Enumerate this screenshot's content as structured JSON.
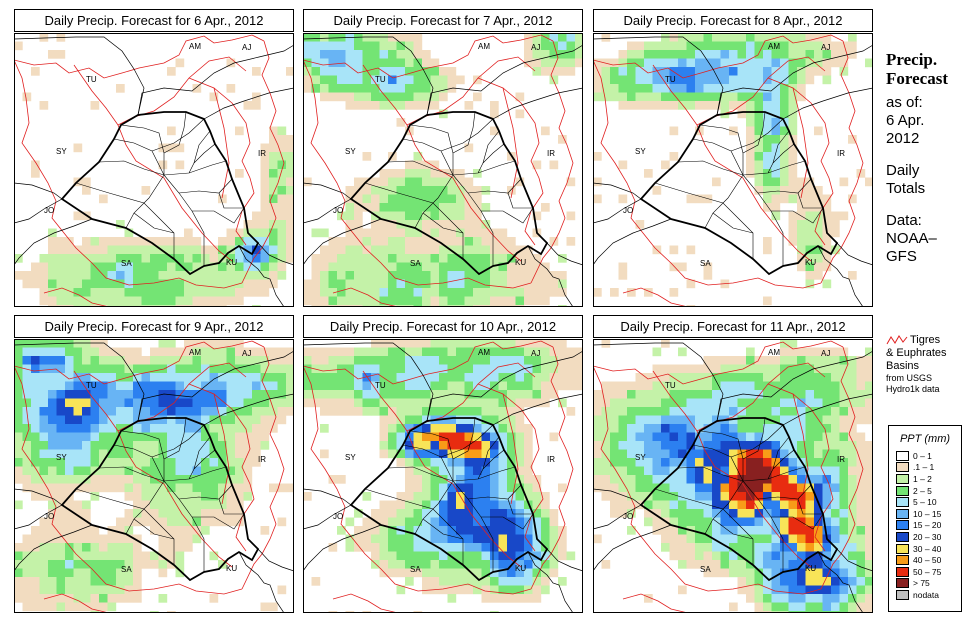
{
  "panels": [
    {
      "title": "Daily Precip. Forecast for  6 Apr., 2012",
      "day": 0
    },
    {
      "title": "Daily Precip. Forecast for  7 Apr., 2012",
      "day": 1
    },
    {
      "title": "Daily Precip. Forecast for  8 Apr., 2012",
      "day": 2
    },
    {
      "title": "Daily Precip. Forecast for  9 Apr., 2012",
      "day": 3
    },
    {
      "title": "Daily Precip. Forecast for  10 Apr., 2012",
      "day": 4
    },
    {
      "title": "Daily Precip. Forecast for  11 Apr., 2012",
      "day": 5
    }
  ],
  "map_labels": [
    "AM",
    "AJ",
    "TU",
    "SY",
    "IR",
    "JO",
    "SA",
    "KU"
  ],
  "side": {
    "title_line1": "Precip.",
    "title_line2": "Forecast",
    "asof_line1": "as of:",
    "asof_line2": "6 Apr.",
    "asof_line3": "2012",
    "totals_line1": "Daily",
    "totals_line2": "Totals",
    "data_line1": "Data:",
    "data_line2": "NOAA–",
    "data_line3": "GFS"
  },
  "basin_legend": {
    "line1": "Tigres",
    "line2": "& Euphrates",
    "line3": "Basins",
    "line4": "from USGS",
    "line5": "Hydro1k data",
    "color": "#e02020"
  },
  "legend": {
    "title": "PPT (mm)",
    "items": [
      {
        "label": "0 – 1",
        "color": "#ffffff"
      },
      {
        "label": ".1 – 1",
        "color": "#f2dcc0"
      },
      {
        "label": "1 – 2",
        "color": "#c4f2a8"
      },
      {
        "label": "2 – 5",
        "color": "#74e474"
      },
      {
        "label": "5 – 10",
        "color": "#a8e4f8"
      },
      {
        "label": "10 – 15",
        "color": "#68b4f4"
      },
      {
        "label": "15 – 20",
        "color": "#2c80f0"
      },
      {
        "label": "20 – 30",
        "color": "#1848c8"
      },
      {
        "label": "30 – 40",
        "color": "#f8e458"
      },
      {
        "label": "40 – 50",
        "color": "#f89c18"
      },
      {
        "label": "50 – 75",
        "color": "#e82c10"
      },
      {
        "label": "> 75",
        "color": "#882020"
      },
      {
        "label": "nodata",
        "color": "#bfbfbf"
      }
    ]
  }
}
